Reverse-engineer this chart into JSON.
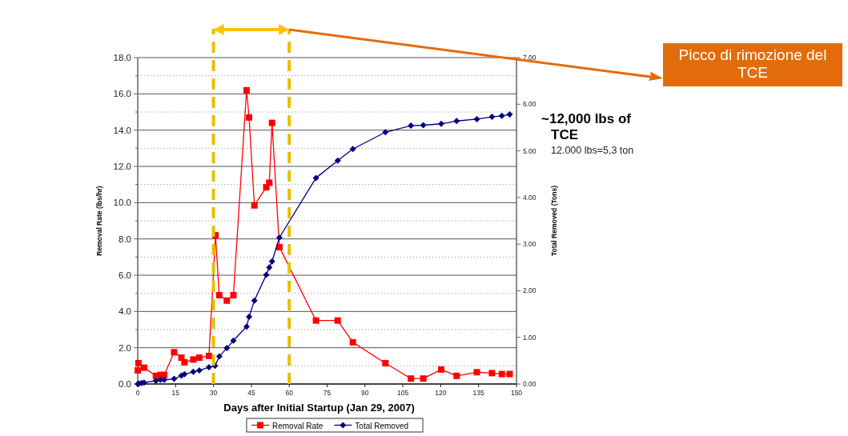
{
  "chart_data": {
    "type": "line",
    "xlabel": "Days after Initial Startup (Jan 29, 2007)",
    "ylabel": "Removal Rate (lbs/hr)",
    "y2label": "Total Removed (Tons)",
    "xlim": [
      0,
      150
    ],
    "xticks": [
      0,
      15,
      30,
      45,
      60,
      75,
      90,
      105,
      120,
      135,
      150
    ],
    "ylim": [
      0,
      18
    ],
    "yticks": [
      {
        "value": 0,
        "label": "0.0"
      },
      {
        "value": 1,
        "label": null
      },
      {
        "value": 2,
        "label": "2.0"
      },
      {
        "value": 3,
        "label": null
      },
      {
        "value": 4,
        "label": "4.0"
      },
      {
        "value": 5,
        "label": null
      },
      {
        "value": 6,
        "label": "6.0"
      },
      {
        "value": 7,
        "label": null
      },
      {
        "value": 8,
        "label": "8.0"
      },
      {
        "value": 9,
        "label": null
      },
      {
        "value": 10,
        "label": "10.0"
      },
      {
        "value": 11,
        "label": null
      },
      {
        "value": 12,
        "label": "12.0"
      },
      {
        "value": 13,
        "label": null
      },
      {
        "value": 14,
        "label": "14.0"
      },
      {
        "value": 15,
        "label": null
      },
      {
        "value": 16,
        "label": "16.0"
      },
      {
        "value": 17,
        "label": null
      },
      {
        "value": 18,
        "label": "18.0"
      }
    ],
    "y2lim": [
      0,
      7
    ],
    "y2ticks": [
      {
        "value": 0,
        "label": "0.00"
      },
      {
        "value": 1,
        "label": "1.00"
      },
      {
        "value": 2,
        "label": "2.00"
      },
      {
        "value": 3,
        "label": "3.00"
      },
      {
        "value": 4,
        "label": "4.00"
      },
      {
        "value": 5,
        "label": "5.00"
      },
      {
        "value": 6,
        "label": "6.00"
      },
      {
        "value": 7,
        "label": "7.00"
      }
    ],
    "grid": "y",
    "legend": "bottom",
    "line_style": "solid",
    "series": [
      {
        "name": "Removal Rate",
        "color": "#ff0000",
        "marker": "square",
        "x": [
          0,
          0.3,
          1.5,
          2.5,
          7.2,
          9,
          10.5,
          14.4,
          17.3,
          18.5,
          22,
          24.4,
          28.2,
          30.8,
          32.3,
          35.3,
          37.9,
          43.1,
          44.1,
          46.2,
          50.9,
          52.1,
          53.2,
          56.1,
          70.6,
          79.2,
          85.2,
          98.1,
          108.2,
          113.1,
          120.2,
          126.3,
          134.3,
          140.3,
          144.2,
          147.3
        ],
        "values": [
          0.75,
          1.15,
          null,
          0.9,
          0.45,
          0.5,
          0.5,
          1.75,
          1.45,
          1.2,
          1.35,
          1.45,
          1.55,
          8.2,
          4.9,
          4.6,
          4.9,
          16.2,
          14.7,
          9.85,
          10.85,
          11.1,
          14.4,
          7.55,
          3.5,
          3.5,
          2.3,
          1.15,
          0.3,
          0.3,
          0.8,
          0.45,
          0.65,
          0.6,
          0.55,
          0.55
        ]
      },
      {
        "name": "Total Removed",
        "color": "#000080",
        "marker": "diamond",
        "axis": "y2",
        "x": [
          0,
          0.5,
          1.5,
          2.5,
          7.2,
          9,
          10.5,
          14.4,
          17.3,
          18.5,
          22,
          24.4,
          28.2,
          30.6,
          32.3,
          35.3,
          37.9,
          43.1,
          44.1,
          46.2,
          50.9,
          52.1,
          53.2,
          56.1,
          70.6,
          79.2,
          85.2,
          98.1,
          108.2,
          113.1,
          120.2,
          126.3,
          134.3,
          140.3,
          144.2,
          147.3
        ],
        "values": [
          0,
          0.01,
          0.02,
          0.03,
          0.07,
          0.09,
          0.09,
          0.11,
          0.18,
          0.21,
          0.26,
          0.29,
          0.36,
          0.39,
          0.59,
          0.77,
          0.93,
          1.23,
          1.44,
          1.79,
          2.34,
          2.5,
          2.63,
          3.14,
          4.42,
          4.79,
          5.04,
          5.4,
          5.54,
          5.55,
          5.58,
          5.64,
          5.68,
          5.73,
          5.75,
          5.78
        ]
      }
    ],
    "ref_lines": [
      {
        "axis": "x",
        "value": 30,
        "color": "#e6c000",
        "line_style": "dashed"
      },
      {
        "axis": "x",
        "value": 60,
        "color": "#e6c000",
        "line_style": "dashed"
      }
    ],
    "annotations": [
      "Picco di rimozione del TCE",
      "~12,000 lbs of TCE",
      "12.000 lbs=5,3 ton"
    ]
  }
}
